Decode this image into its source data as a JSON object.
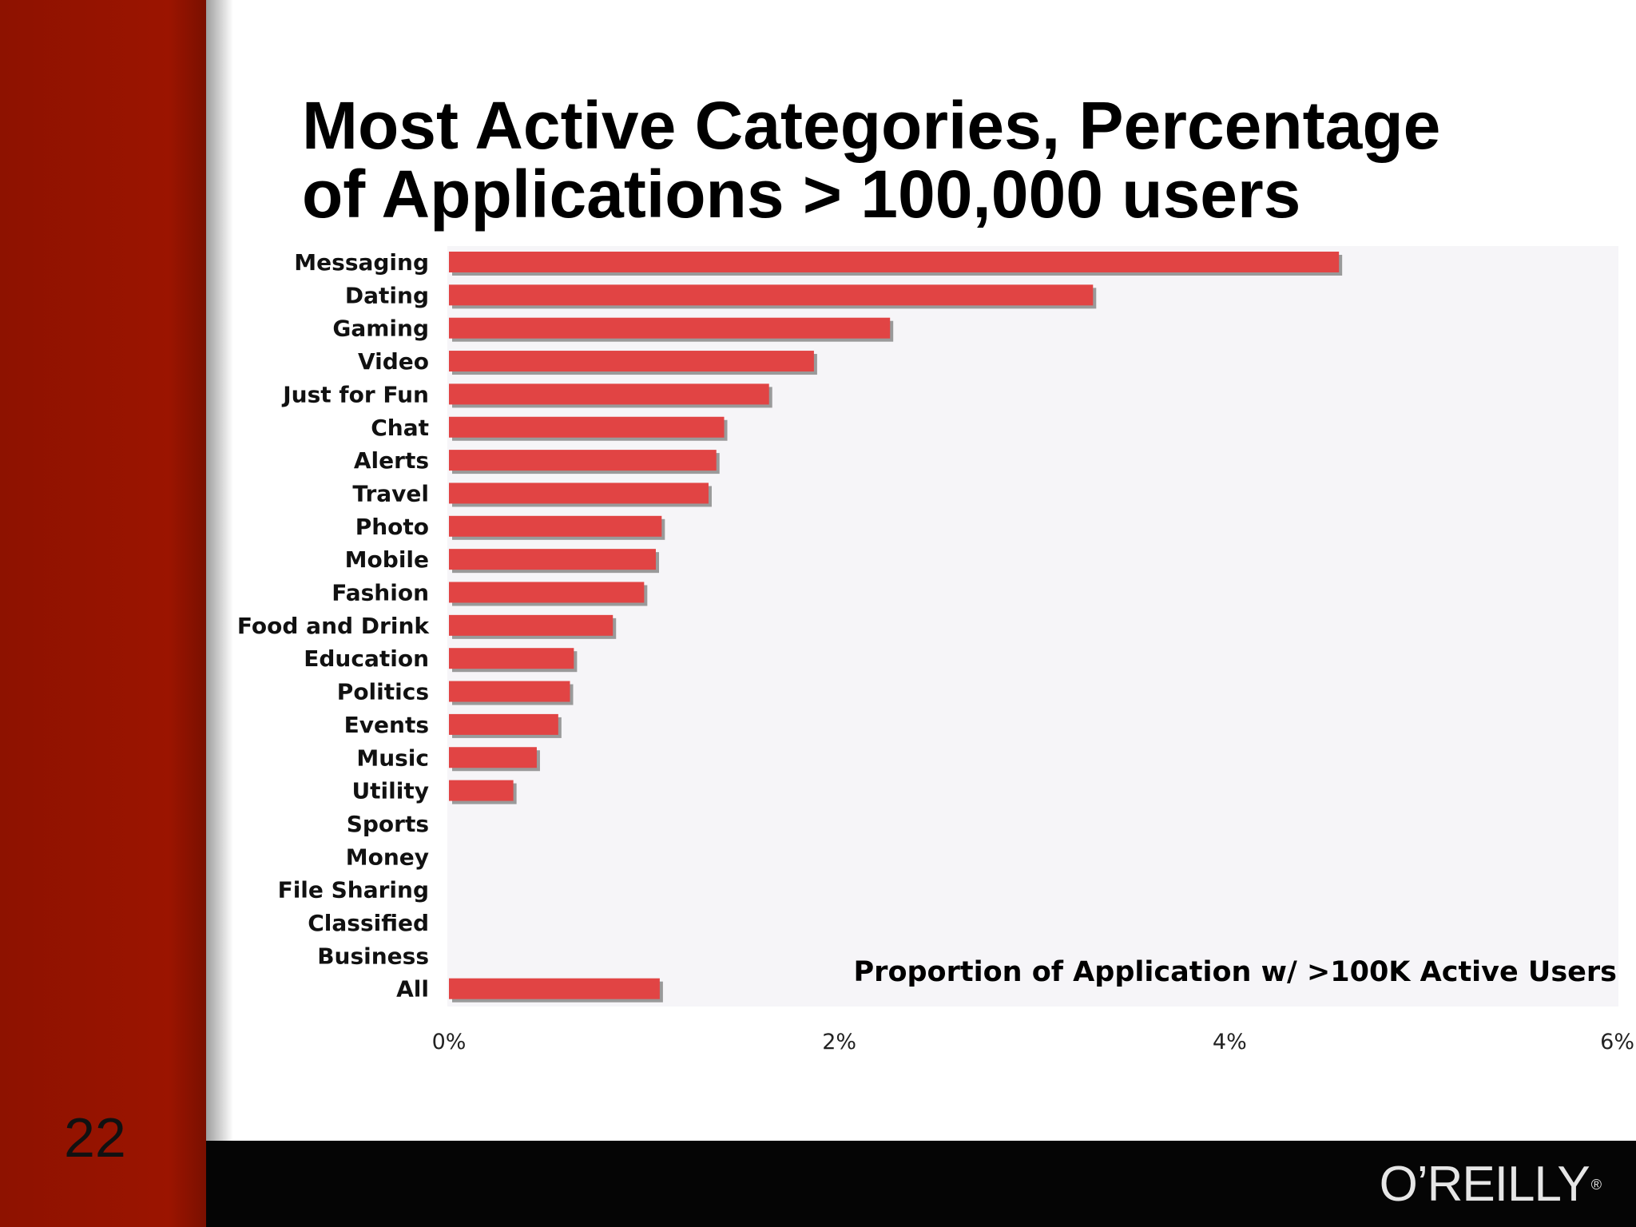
{
  "slide": {
    "title_line1": "Most Active Categories, Percentage",
    "title_line2": "of Applications > 100,000 users",
    "page_number": "22",
    "logo_text": "O’REILLY",
    "logo_mark": "®"
  },
  "colors": {
    "sidebar": "#9b1400",
    "bar": "#e14444",
    "bar_shadow": "#9a9a9a",
    "plot_background": "#f6f5f8",
    "footer": "#050505"
  },
  "chart_data": {
    "type": "bar",
    "orientation": "horizontal",
    "title": "Most Active Categories, Percentage of Applications > 100,000 users",
    "xlabel": "Proportion of Application w/ >100K Active Users",
    "ylabel": "",
    "xlim": [
      0,
      6
    ],
    "x_unit": "%",
    "xticks": [
      0,
      2,
      4,
      6
    ],
    "xtick_labels": [
      "0%",
      "2%",
      "4%",
      "6%"
    ],
    "categories": [
      "Messaging",
      "Dating",
      "Gaming",
      "Video",
      "Just for Fun",
      "Chat",
      "Alerts",
      "Travel",
      "Photo",
      "Mobile",
      "Fashion",
      "Food and Drink",
      "Education",
      "Politics",
      "Events",
      "Music",
      "Utility",
      "Sports",
      "Money",
      "File Sharing",
      "Classified",
      "Business",
      "All"
    ],
    "values": [
      4.56,
      3.3,
      2.26,
      1.87,
      1.64,
      1.41,
      1.37,
      1.33,
      1.09,
      1.06,
      1.0,
      0.84,
      0.64,
      0.62,
      0.56,
      0.45,
      0.33,
      0,
      0,
      0,
      0,
      0,
      1.08
    ],
    "grid": false,
    "legend": false
  }
}
